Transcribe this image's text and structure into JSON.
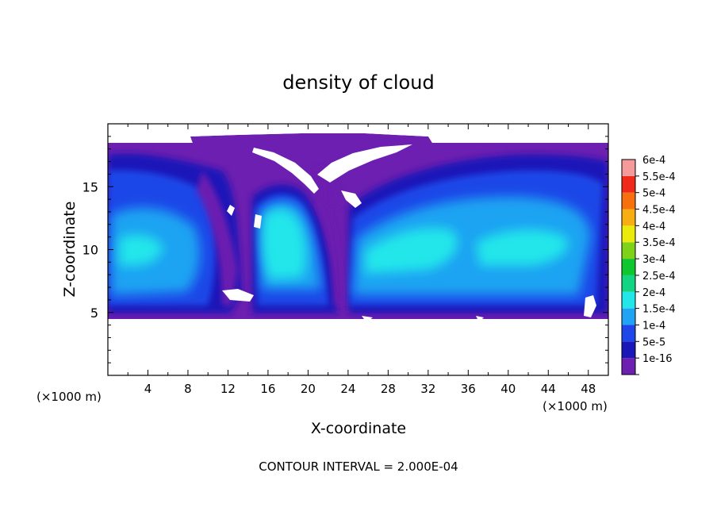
{
  "chart_data": {
    "type": "heatmap",
    "title": "density of cloud",
    "xlabel": "X-coordinate",
    "ylabel": "Z-coordinate",
    "x_unit_left": "(×1000 m)",
    "x_unit_right": "(×1000 m)",
    "footer": "CONTOUR INTERVAL = 2.000E-04",
    "xlim": [
      0,
      50
    ],
    "ylim": [
      0,
      20
    ],
    "x_ticks": [
      4,
      8,
      12,
      16,
      20,
      24,
      28,
      32,
      36,
      40,
      44,
      48
    ],
    "y_ticks": [
      5,
      10,
      15
    ],
    "colorbar": {
      "levels": [
        {
          "label": "1e-16",
          "color": "#6c1fb0"
        },
        {
          "label": "5e-5",
          "color": "#1a17b8"
        },
        {
          "label": "1e-4",
          "color": "#1f46e8"
        },
        {
          "label": "1.5e-4",
          "color": "#1fa3f2"
        },
        {
          "label": "2e-4",
          "color": "#22e6ea"
        },
        {
          "label": "2.5e-4",
          "color": "#12d482"
        },
        {
          "label": "3e-4",
          "color": "#0ec62e"
        },
        {
          "label": "3.5e-4",
          "color": "#7ed21a"
        },
        {
          "label": "4e-4",
          "color": "#eaea0c"
        },
        {
          "label": "4.5e-4",
          "color": "#f6ae12"
        },
        {
          "label": "5e-4",
          "color": "#f7700e"
        },
        {
          "label": "5.5e-4",
          "color": "#f02a1a"
        },
        {
          "label": "6e-4",
          "color": "#f49a9a"
        }
      ]
    }
  }
}
